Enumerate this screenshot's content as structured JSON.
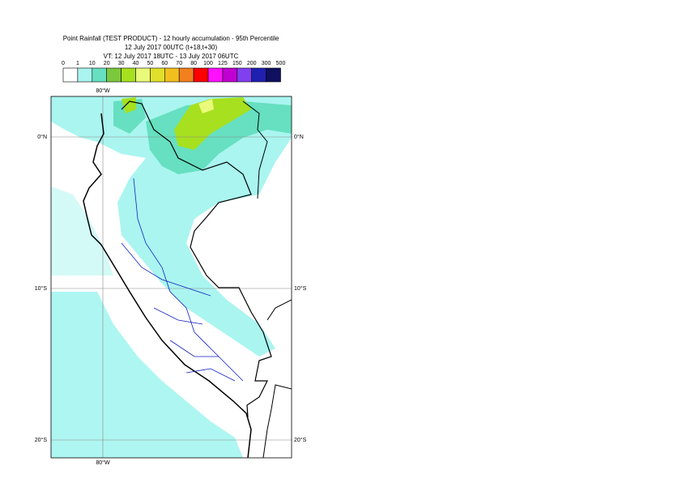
{
  "header": {
    "title": "Point Rainfall (TEST PRODUCT) - 12 hourly accumulation - 95th Percentile",
    "run": "12 July 2017 00UTC (t+18,t+30)",
    "validity": "VT: 12 July 2017 18UTC - 13 July 2017 06UTC"
  },
  "legend": {
    "bounds": [
      0,
      1,
      10,
      20,
      30,
      40,
      50,
      60,
      70,
      80,
      100,
      125,
      150,
      200,
      300,
      500
    ],
    "colors": [
      "#ffffff",
      "#aaf5f0",
      "#66e0c0",
      "#7cc83c",
      "#a6e01e",
      "#eafa7a",
      "#e0e02c",
      "#f2c01e",
      "#f2801e",
      "#ff0000",
      "#ff10ff",
      "#c000d0",
      "#8040f0",
      "#2020b0",
      "#101060"
    ]
  },
  "map": {
    "lon_labels": [
      "80°W",
      "80°W"
    ],
    "lat_labels_left": [
      "0°N",
      "10°S",
      "20°S"
    ],
    "lat_labels_right": [
      "0°N",
      "10°S",
      "20°S"
    ]
  }
}
